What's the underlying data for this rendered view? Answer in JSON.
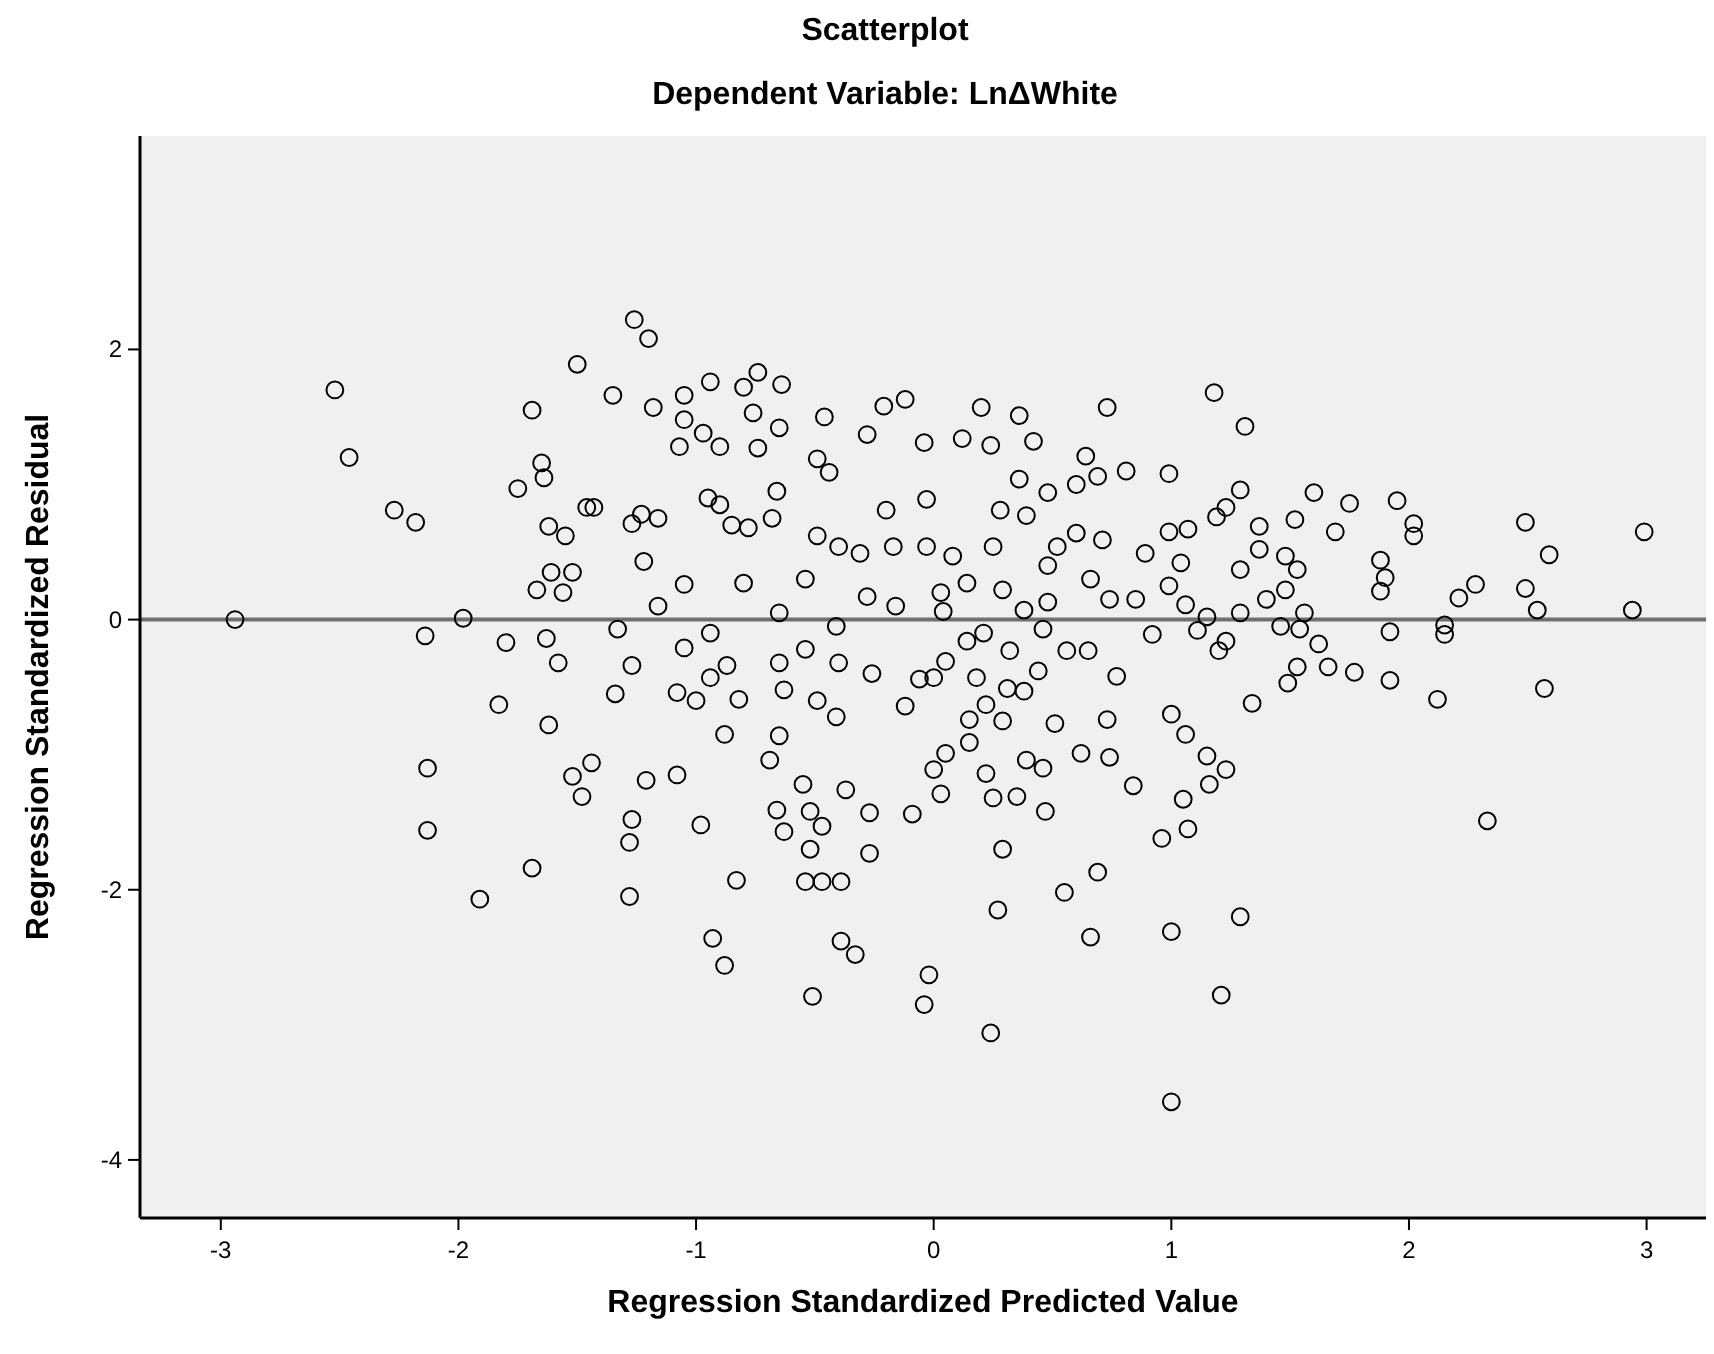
{
  "chart_data": {
    "type": "scatter",
    "title": "Scatterplot",
    "subtitle": "Dependent Variable: LnΔWhite",
    "xlabel": "Regression Standardized Predicted Value",
    "ylabel": "Regression Standardized Residual",
    "xlim": [
      -3.34,
      3.25
    ],
    "ylim": [
      -4.43,
      3.58
    ],
    "xticks": [
      -3,
      -2,
      -1,
      0,
      1,
      2,
      3
    ],
    "yticks": [
      -4,
      -2,
      0,
      2
    ],
    "grid": false,
    "marker": "circle",
    "ref_lines": [
      {
        "axis": "y",
        "value": 0,
        "color": "#707070"
      }
    ],
    "series": [
      {
        "color": "#000000",
        "x": [
          -2.94,
          -2.52,
          -2.46,
          -2.27,
          -2.18,
          -2.14,
          -1.98,
          -1.8,
          -1.69,
          -1.75,
          -1.65,
          -1.64,
          -1.62,
          -1.55,
          -1.61,
          -1.52,
          -1.67,
          -1.56,
          -1.63,
          -1.58,
          -1.5,
          -1.46,
          -1.43,
          -1.35,
          -1.26,
          -1.2,
          -1.18,
          -1.27,
          -1.23,
          -1.16,
          -1.22,
          -1.33,
          -1.16,
          -1.05,
          -1.05,
          -1.07,
          -0.97,
          -0.9,
          -0.94,
          -0.8,
          -0.74,
          -0.64,
          -0.76,
          -0.65,
          -0.74,
          -0.95,
          -0.9,
          -0.85,
          -0.78,
          -0.68,
          -0.66,
          -0.46,
          -0.28,
          -0.21,
          -0.12,
          -0.2,
          -0.49,
          -0.44,
          -0.04,
          -1.05,
          -0.8,
          -0.65,
          -0.54,
          -0.28,
          -0.16,
          -0.4,
          -0.31,
          -0.17,
          -0.49,
          -0.94,
          -0.65,
          -0.54,
          -0.41,
          -0.4,
          -0.26,
          -0.06,
          -1.05,
          -0.87,
          -0.94,
          -1.0,
          -1.08,
          -1.27,
          -1.34,
          -1.62,
          -1.83,
          -0.82,
          -0.63,
          -0.49,
          -0.41,
          -0.88,
          -0.65,
          -0.12,
          -2.13,
          -2.13,
          -1.91,
          -1.69,
          -1.52,
          -1.44,
          -1.48,
          -1.27,
          -1.28,
          -1.28,
          -1.21,
          -1.08,
          -0.98,
          -0.83,
          -0.93,
          -0.88,
          -0.66,
          -0.63,
          -0.52,
          -0.47,
          -0.52,
          -0.54,
          -0.47,
          -0.39,
          -0.27,
          -0.39,
          -0.33,
          -0.55,
          -0.69,
          -0.37,
          -0.27,
          -0.09,
          -0.51,
          -0.02,
          0.24,
          -0.04,
          0.27,
          0.55,
          0.69,
          0.66,
          1.0,
          1.0,
          1.21,
          1.29,
          2.33,
          0.96,
          1.07,
          1.05,
          0.29,
          0.47,
          0.35,
          0.25,
          0.03,
          0.62,
          0.74,
          0.84,
          0.73,
          0.51,
          0.46,
          0.39,
          1.0,
          1.06,
          1.15,
          1.23,
          1.16,
          1.34,
          1.49,
          1.53,
          1.66,
          1.77,
          1.92,
          2.12,
          2.57,
          1.92,
          2.15,
          2.15,
          1.62,
          1.46,
          1.54,
          1.23,
          1.2,
          1.11,
          0.92,
          0.77,
          0.65,
          0.56,
          0.44,
          0.31,
          0.38,
          0.15,
          0.22,
          0.29,
          0.05,
          0.15,
          0.0,
          0.22,
          0.32,
          0.18,
          0.0,
          0.05,
          0.14,
          0.21,
          0.46,
          2.94,
          2.54,
          1.18,
          1.31,
          0.2,
          0.73,
          0.36,
          0.42,
          0.12,
          0.24,
          0.64,
          0.81,
          0.69,
          0.36,
          0.6,
          0.99,
          0.48,
          1.29,
          1.6,
          1.75,
          1.95,
          2.02,
          2.02,
          2.49,
          2.99,
          2.59,
          2.49,
          2.28,
          2.21,
          1.88,
          1.9,
          1.88,
          1.52,
          1.69,
          1.37,
          1.23,
          1.19,
          1.37,
          1.29,
          1.48,
          1.53,
          1.48,
          1.4,
          1.56,
          1.29,
          1.15,
          1.06,
          1.07,
          0.99,
          1.04,
          0.89,
          0.74,
          0.85,
          0.99,
          0.71,
          0.6,
          0.52,
          0.48,
          0.48,
          0.38,
          0.29,
          0.14,
          0.03,
          0.04,
          0.66,
          0.39,
          0.28,
          0.25,
          0.08,
          -0.03,
          -0.03
        ],
        "values": [
          0.0,
          1.7,
          1.2,
          0.81,
          0.72,
          -0.12,
          0.01,
          -0.17,
          1.55,
          0.97,
          1.16,
          1.05,
          0.69,
          0.62,
          0.35,
          0.35,
          0.22,
          0.2,
          -0.14,
          -0.32,
          1.89,
          0.83,
          0.83,
          1.66,
          2.22,
          2.08,
          1.57,
          0.71,
          0.78,
          0.75,
          0.43,
          -0.07,
          0.1,
          1.66,
          1.48,
          1.28,
          1.38,
          1.28,
          1.76,
          1.72,
          1.83,
          1.74,
          1.53,
          1.42,
          1.27,
          0.9,
          0.85,
          0.7,
          0.68,
          0.75,
          0.95,
          1.5,
          1.37,
          1.58,
          1.63,
          0.81,
          1.19,
          1.09,
          1.31,
          0.26,
          0.27,
          0.05,
          0.3,
          0.17,
          0.1,
          0.54,
          0.49,
          0.54,
          0.62,
          -0.1,
          -0.32,
          -0.22,
          -0.05,
          -0.32,
          -0.4,
          -0.44,
          -0.21,
          -0.34,
          -0.43,
          -0.6,
          -0.54,
          -0.34,
          -0.55,
          -0.78,
          -0.63,
          -0.59,
          -0.52,
          -0.6,
          -0.72,
          -0.85,
          -0.86,
          -0.64,
          -1.1,
          -1.56,
          -2.07,
          -1.84,
          -1.16,
          -1.06,
          -1.31,
          -1.48,
          -1.65,
          -2.05,
          -1.19,
          -1.15,
          -1.52,
          -1.93,
          -2.36,
          -2.56,
          -1.41,
          -1.57,
          -1.42,
          -1.53,
          -1.7,
          -1.94,
          -1.94,
          -1.94,
          -1.73,
          -2.38,
          -2.48,
          -1.22,
          -1.04,
          -1.26,
          -1.43,
          -1.44,
          -2.79,
          -2.63,
          -3.06,
          -2.85,
          -2.15,
          -2.02,
          -1.87,
          -2.35,
          -2.31,
          -3.57,
          -2.78,
          -2.2,
          -1.49,
          -1.62,
          -1.55,
          -1.33,
          -1.7,
          -1.42,
          -1.31,
          -1.32,
          -1.29,
          -0.99,
          -1.02,
          -1.23,
          -0.74,
          -0.77,
          -1.1,
          -1.04,
          -0.7,
          -0.85,
          -1.01,
          -1.11,
          -1.22,
          -0.62,
          -0.47,
          -0.35,
          -0.35,
          -0.39,
          -0.45,
          -0.59,
          -0.51,
          -0.09,
          -0.04,
          -0.11,
          -0.18,
          -0.05,
          -0.07,
          -0.16,
          -0.23,
          -0.08,
          -0.11,
          -0.42,
          -0.23,
          -0.23,
          -0.38,
          -0.51,
          -0.53,
          -0.74,
          -0.63,
          -0.75,
          -0.99,
          -0.91,
          -1.11,
          -1.14,
          -0.23,
          -0.43,
          -0.43,
          -0.31,
          -0.16,
          -0.1,
          -0.07,
          0.07,
          0.07,
          1.68,
          1.43,
          1.57,
          1.57,
          1.51,
          1.32,
          1.34,
          1.29,
          1.21,
          1.1,
          1.06,
          1.04,
          1.0,
          1.08,
          0.94,
          0.96,
          0.94,
          0.86,
          0.88,
          0.71,
          0.62,
          0.72,
          0.65,
          0.48,
          0.23,
          0.26,
          0.16,
          0.44,
          0.31,
          0.21,
          0.74,
          0.65,
          0.69,
          0.83,
          0.76,
          0.52,
          0.37,
          0.47,
          0.37,
          0.22,
          0.15,
          0.05,
          0.05,
          0.02,
          0.11,
          0.67,
          0.65,
          0.42,
          0.49,
          0.15,
          0.15,
          0.25,
          0.59,
          0.64,
          0.54,
          0.4,
          0.13,
          0.07,
          0.22,
          0.27,
          0.2,
          0.06,
          0.3,
          0.77,
          0.81,
          0.54,
          0.47,
          0.54,
          0.89
        ]
      }
    ]
  }
}
